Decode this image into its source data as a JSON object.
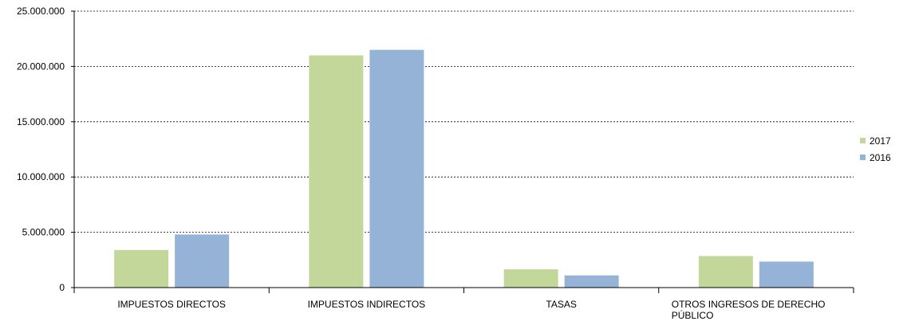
{
  "chart_data": {
    "type": "bar",
    "categories": [
      "IMPUESTOS DIRECTOS",
      "IMPUESTOS INDIRECTOS",
      "TASAS",
      "OTROS INGRESOS DE DERECHO PÚBLICO"
    ],
    "category_lines": [
      [
        "IMPUESTOS DIRECTOS"
      ],
      [
        "IMPUESTOS INDIRECTOS"
      ],
      [
        "TASAS"
      ],
      [
        "OTROS INGRESOS DE DERECHO",
        "PÚBLICO"
      ]
    ],
    "series": [
      {
        "name": "2017",
        "color": "#c4d79b",
        "values": [
          3400000,
          21000000,
          1650000,
          2850000
        ]
      },
      {
        "name": "2016",
        "color": "#95b3d7",
        "values": [
          4800000,
          21500000,
          1100000,
          2350000
        ]
      }
    ],
    "ylim": [
      0,
      25000000
    ],
    "yticks": [
      0,
      5000000,
      10000000,
      15000000,
      20000000,
      25000000
    ],
    "ytick_labels": [
      "0",
      "5.000.000",
      "10.000.000",
      "15.000.000",
      "20.000.000",
      "25.000.000"
    ],
    "grid": true,
    "legend_position": "right"
  }
}
